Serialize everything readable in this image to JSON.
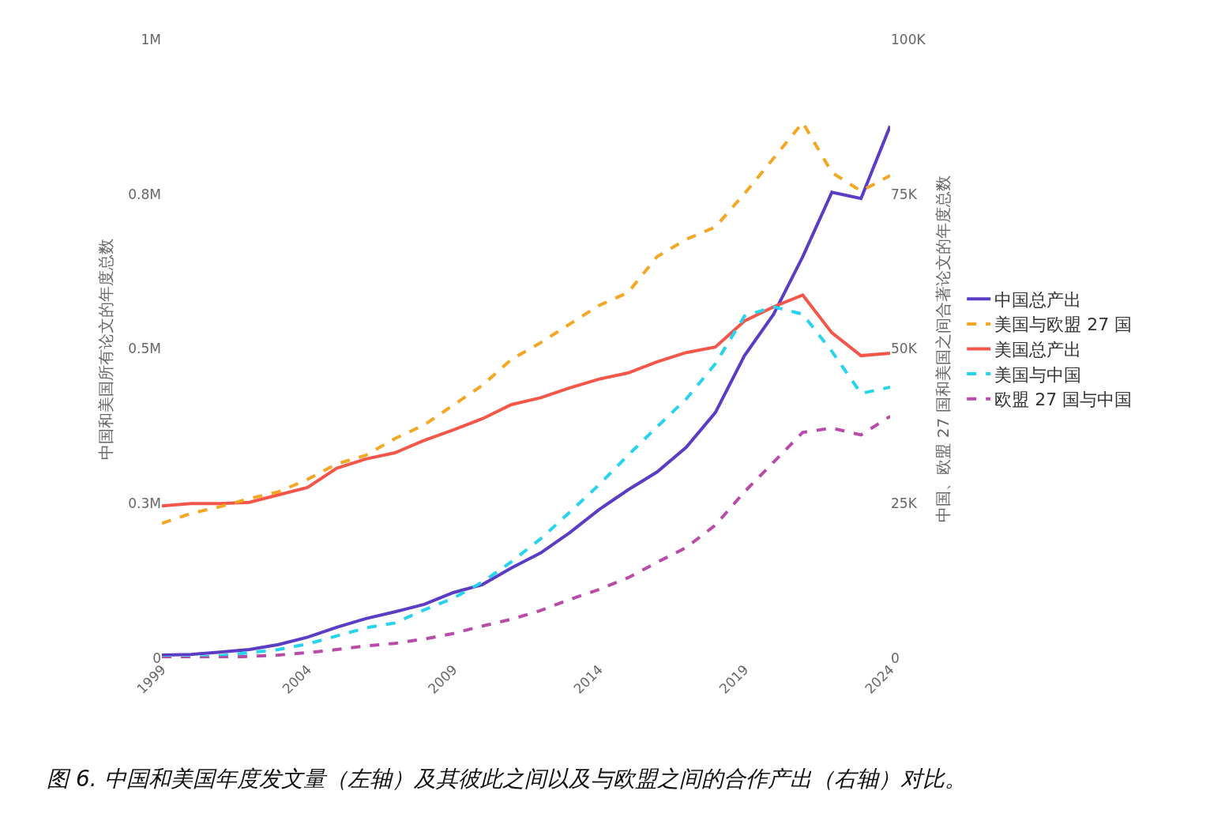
{
  "chart_data": {
    "type": "line",
    "ylabel": "中国和美国所有论文的年度总数",
    "y2label": "中国、欧盟 27 国和美国之间合著论文的年度总数",
    "annotations": [
      "图 6. 中国和美国年度发文量（左轴）及其彼此之间以及与欧盟之间的合作产出（右轴）对比。"
    ],
    "x": [
      1999,
      2000,
      2001,
      2002,
      2003,
      2004,
      2005,
      2006,
      2007,
      2008,
      2009,
      2010,
      2011,
      2012,
      2013,
      2014,
      2015,
      2016,
      2017,
      2018,
      2019,
      2020,
      2021,
      2022,
      2023,
      2024
    ],
    "xlim": [
      1999,
      2024
    ],
    "xticks": [
      1999,
      2004,
      2009,
      2014,
      2019,
      2024
    ],
    "ylim": [
      0,
      1000000
    ],
    "yticks": [
      {
        "value": 0,
        "label": "0"
      },
      {
        "value": 250000,
        "label": "0.3M"
      },
      {
        "value": 500000,
        "label": "0.5M"
      },
      {
        "value": 750000,
        "label": "0.8M"
      },
      {
        "value": 1000000,
        "label": "1M"
      }
    ],
    "y2lim": [
      0,
      100000
    ],
    "y2ticks": [
      {
        "value": 0,
        "label": "0"
      },
      {
        "value": 25000,
        "label": "25K"
      },
      {
        "value": 50000,
        "label": "50K"
      },
      {
        "value": 75000,
        "label": "75K"
      },
      {
        "value": 100000,
        "label": "100K"
      }
    ],
    "legend": "right",
    "marker": "none",
    "series": [
      {
        "name": "中国总产出",
        "color": "#5b3cc4",
        "line_style": "solid",
        "values": [
          5000,
          6000,
          10000,
          14000,
          22000,
          34000,
          50000,
          64000,
          75000,
          87000,
          106000,
          119000,
          146000,
          170000,
          203000,
          240000,
          272000,
          301000,
          341000,
          397000,
          489000,
          556000,
          649000,
          753000,
          743000,
          860000
        ]
      },
      {
        "name": "美国与欧盟 27 国",
        "color": "#f5a623",
        "line_style": "dashed",
        "axis": "y2",
        "values": [
          21800,
          23400,
          24500,
          25800,
          26900,
          28900,
          31400,
          32800,
          35500,
          37700,
          40900,
          44100,
          48300,
          51000,
          54000,
          57000,
          59100,
          64900,
          67700,
          69700,
          75100,
          80800,
          86600,
          78500,
          75500,
          78000
        ]
      },
      {
        "name": "美国总产出",
        "color": "#f4564a",
        "line_style": "solid",
        "values": [
          246000,
          250000,
          250000,
          252000,
          264000,
          276000,
          307000,
          322000,
          332000,
          352000,
          369000,
          387000,
          410000,
          421000,
          437000,
          451000,
          461000,
          479000,
          494000,
          503000,
          545000,
          568000,
          587000,
          526000,
          489000,
          493000
        ]
      },
      {
        "name": "美国与中国",
        "color": "#27d3ef",
        "line_style": "dashed",
        "axis": "y2",
        "values": [
          100,
          100,
          400,
          900,
          1400,
          2300,
          3600,
          4900,
          5700,
          7800,
          9700,
          12300,
          15600,
          19300,
          23600,
          28000,
          32800,
          37400,
          41900,
          47600,
          55300,
          56800,
          55600,
          49600,
          42800,
          43800
        ]
      },
      {
        "name": "欧盟 27 国与中国",
        "color": "#b84ca8",
        "line_style": "dashed",
        "axis": "y2",
        "values": [
          0,
          0,
          100,
          300,
          500,
          900,
          1400,
          2000,
          2400,
          3100,
          4000,
          5200,
          6300,
          7700,
          9500,
          11100,
          13000,
          15500,
          17900,
          21500,
          26900,
          31700,
          36500,
          37200,
          36100,
          39100
        ]
      }
    ]
  }
}
